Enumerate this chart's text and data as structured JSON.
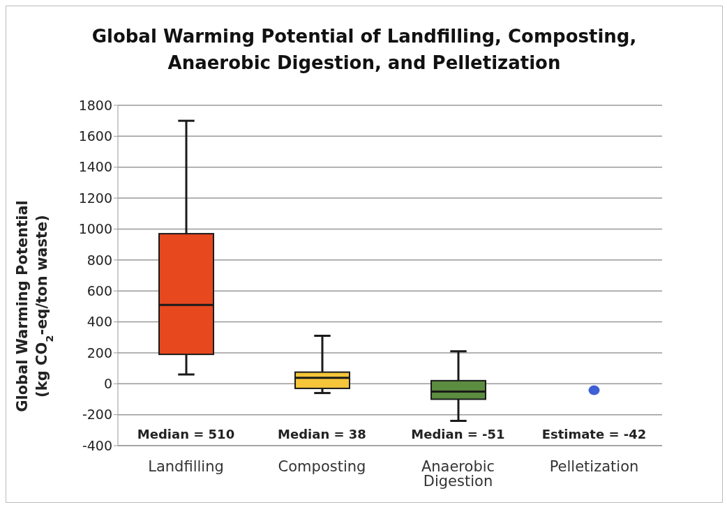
{
  "chart_data": {
    "type": "box",
    "title": "Global Warming Potential of Landfilling, Composting, Anaerobic Digestion, and Pelletization",
    "ylabel": "Global Warming Potential\n(kg CO$_{2}$-eq/ton waste)",
    "categories": [
      "Landfilling",
      "Composting",
      "Anaerobic Digestion",
      "Pelletization"
    ],
    "series": [
      {
        "colors": [
          "#e8481e",
          "#f5c53a",
          "#5b8c3f",
          null
        ],
        "boxes": [
          {
            "low": 60,
            "q1": 190,
            "median": 510,
            "q3": 970,
            "high": 1700
          },
          {
            "low": -60,
            "q1": -30,
            "median": 38,
            "q3": 75,
            "high": 310
          },
          {
            "low": -240,
            "q1": -100,
            "median": -51,
            "q3": 20,
            "high": 210
          },
          null
        ]
      },
      {
        "type": "scatter",
        "x": [
          "Pelletization"
        ],
        "values": [
          -42
        ],
        "color": "#3f5fd6",
        "marker": "circle"
      }
    ],
    "ylim": [
      -400,
      1800
    ],
    "yticks": [
      -400,
      -200,
      0,
      200,
      400,
      600,
      800,
      1000,
      1200,
      1400,
      1600,
      1800
    ],
    "grid": "y",
    "annotations": [
      "Median = 510",
      "Median = 38",
      "Median = -51",
      "Estimate = -42"
    ]
  }
}
